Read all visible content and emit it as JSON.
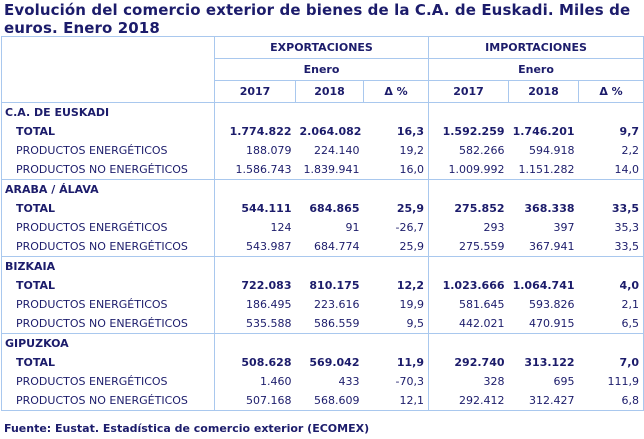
{
  "title": "Evolución del comercio exterior de bienes de la C.A. de Euskadi. Miles de euros. Enero 2018",
  "header": {
    "exports": "EXPORTACIONES",
    "imports": "IMPORTACIONES",
    "period": "Enero",
    "years": [
      "2017",
      "2018"
    ],
    "delta": "Δ %"
  },
  "sections": [
    {
      "name": "C.A. DE EUSKADI",
      "rows": [
        {
          "label": "TOTAL",
          "exp2017": "1.774.822",
          "exp2018": "2.064.082",
          "expd": "16,3",
          "imp2017": "1.592.259",
          "imp2018": "1.746.201",
          "impd": "9,7"
        },
        {
          "label": "PRODUCTOS ENERGÉTICOS",
          "exp2017": "188.079",
          "exp2018": "224.140",
          "expd": "19,2",
          "imp2017": "582.266",
          "imp2018": "594.918",
          "impd": "2,2"
        },
        {
          "label": "PRODUCTOS NO ENERGÉTICOS",
          "exp2017": "1.586.743",
          "exp2018": "1.839.941",
          "expd": "16,0",
          "imp2017": "1.009.992",
          "imp2018": "1.151.282",
          "impd": "14,0"
        }
      ]
    },
    {
      "name": "ARABA / ÁLAVA",
      "rows": [
        {
          "label": "TOTAL",
          "exp2017": "544.111",
          "exp2018": "684.865",
          "expd": "25,9",
          "imp2017": "275.852",
          "imp2018": "368.338",
          "impd": "33,5"
        },
        {
          "label": "PRODUCTOS ENERGÉTICOS",
          "exp2017": "124",
          "exp2018": "91",
          "expd": "-26,7",
          "imp2017": "293",
          "imp2018": "397",
          "impd": "35,3"
        },
        {
          "label": "PRODUCTOS NO ENERGÉTICOS",
          "exp2017": "543.987",
          "exp2018": "684.774",
          "expd": "25,9",
          "imp2017": "275.559",
          "imp2018": "367.941",
          "impd": "33,5"
        }
      ]
    },
    {
      "name": "BIZKAIA",
      "rows": [
        {
          "label": "TOTAL",
          "exp2017": "722.083",
          "exp2018": "810.175",
          "expd": "12,2",
          "imp2017": "1.023.666",
          "imp2018": "1.064.741",
          "impd": "4,0"
        },
        {
          "label": "PRODUCTOS ENERGÉTICOS",
          "exp2017": "186.495",
          "exp2018": "223.616",
          "expd": "19,9",
          "imp2017": "581.645",
          "imp2018": "593.826",
          "impd": "2,1"
        },
        {
          "label": "PRODUCTOS NO ENERGÉTICOS",
          "exp2017": "535.588",
          "exp2018": "586.559",
          "expd": "9,5",
          "imp2017": "442.021",
          "imp2018": "470.915",
          "impd": "6,5"
        }
      ]
    },
    {
      "name": "GIPUZKOA",
      "rows": [
        {
          "label": "TOTAL",
          "exp2017": "508.628",
          "exp2018": "569.042",
          "expd": "11,9",
          "imp2017": "292.740",
          "imp2018": "313.122",
          "impd": "7,0"
        },
        {
          "label": "PRODUCTOS ENERGÉTICOS",
          "exp2017": "1.460",
          "exp2018": "433",
          "expd": "-70,3",
          "imp2017": "328",
          "imp2018": "695",
          "impd": "111,9"
        },
        {
          "label": "PRODUCTOS NO ENERGÉTICOS",
          "exp2017": "507.168",
          "exp2018": "568.609",
          "expd": "12,1",
          "imp2017": "292.412",
          "imp2018": "312.427",
          "impd": "6,8"
        }
      ]
    }
  ],
  "footer": "Fuente: Eustat. Estadística de comercio exterior (ECOMEX)"
}
